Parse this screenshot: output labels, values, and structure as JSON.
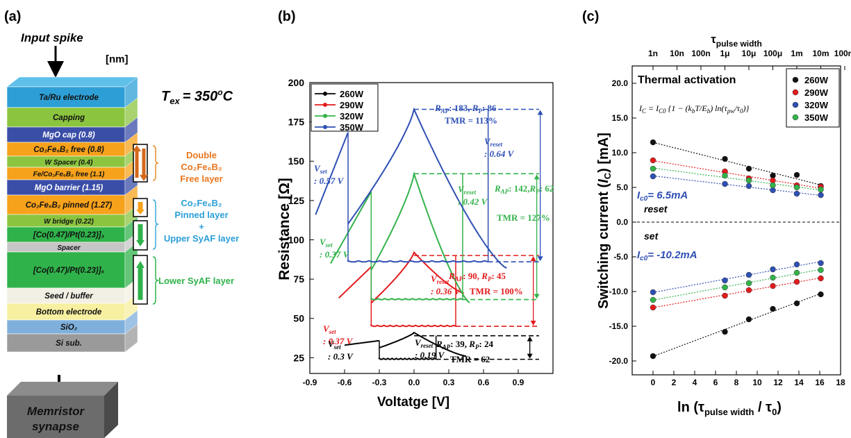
{
  "panel_labels": [
    "(a)",
    "(b)",
    "(c)"
  ],
  "panel_a": {
    "input_spike": "Input spike",
    "unit": "[nm]",
    "tex": "T",
    "tex_sub": "ex",
    "tex_eq": "= 350",
    "tex_sup": "o",
    "tex_c": "C",
    "layers": [
      {
        "label": "Ta/Ru electrode",
        "color": "#2d9fd6"
      },
      {
        "label": "Capping",
        "color": "#8bc53f"
      },
      {
        "label": "MgO cap (0.8)",
        "color": "#3a4ea8"
      },
      {
        "label": "Co₂Fe₆B₂ free (0.8)",
        "color": "#f7a21b"
      },
      {
        "label": "W Spacer (0.4)",
        "color": "#8bc53f"
      },
      {
        "label": "Fe/Co₂Fe₆B₂ free (1.1)",
        "color": "#f7a21b"
      },
      {
        "label": "MgO barrier (1.15)",
        "color": "#3a4ea8"
      },
      {
        "label": "Co₂Fe₆B₂ pinned (1.27)",
        "color": "#f7a21b"
      },
      {
        "label": "W bridge (0.22)",
        "color": "#8bc53f"
      },
      {
        "label": "[Co(0.47)/Pt(0.23)]₃",
        "color": "#2fb24a"
      },
      {
        "label": "Spacer",
        "color": "#c6c6c6"
      },
      {
        "label": "[Co(0.47)/Pt(0.23)]₆",
        "color": "#2fb24a"
      },
      {
        "label": "Seed / buffer",
        "color": "#f2efe4"
      },
      {
        "label": "Bottom electrode",
        "color": "#f7f0a0"
      },
      {
        "label": "SiO₂",
        "color": "#7fb0dc"
      },
      {
        "label": "Si sub.",
        "color": "#9a9a9a"
      }
    ],
    "annot_free": [
      "Double",
      "Co₂Fe₆B₂",
      "Free layer"
    ],
    "annot_pinned": [
      "Co₂Fe₆B₂",
      "Pinned layer",
      "+",
      "Upper SyAF layer"
    ],
    "annot_lower": "Lower SyAF layer",
    "memristor": [
      "Memristor",
      "synapse"
    ]
  },
  "chart_data": [
    {
      "type": "line",
      "panel": "(b)",
      "xlabel": "Voltatge [V]",
      "ylabel": "Resistance [Ω]",
      "xlim": [
        -0.9,
        1.2
      ],
      "ylim": [
        15,
        200
      ],
      "xticks": [
        "-0.9",
        "-0.6",
        "-0.3",
        "0.0",
        "0.3",
        "0.6",
        "0.9"
      ],
      "xtick_values": [
        -0.9,
        -0.6,
        -0.3,
        0.0,
        0.3,
        0.6,
        0.9
      ],
      "yticks": [
        "25",
        "50",
        "75",
        "100",
        "125",
        "150",
        "175",
        "200"
      ],
      "ytick_values": [
        25,
        50,
        75,
        100,
        125,
        150,
        175,
        200
      ],
      "legend_position": "top-left",
      "series": [
        {
          "name": "260W",
          "color": "#000000",
          "marker": "square",
          "loop": {
            "v_start": -0.6,
            "v_set": -0.3,
            "v_reset": 0.19,
            "v_end": 0.45,
            "r_low": 24,
            "r_high": 39,
            "r_start": 33,
            "r_end": 26,
            "r_peak": 41
          }
        },
        {
          "name": "290W",
          "color": "#e31a1c",
          "marker": "circle",
          "loop": {
            "v_start": -0.65,
            "v_set": -0.37,
            "v_reset": 0.36,
            "v_end": 0.43,
            "r_low": 45,
            "r_high": 90,
            "r_start": 63,
            "r_end": 66,
            "r_peak": 92
          }
        },
        {
          "name": "320W",
          "color": "#33b24a",
          "marker": "triangle",
          "loop": {
            "v_start": -0.72,
            "v_set": -0.37,
            "v_reset": 0.42,
            "v_end": 0.48,
            "r_low": 62,
            "r_high": 142,
            "r_start": 85,
            "r_end": 60,
            "r_peak": 142
          }
        },
        {
          "name": "350W",
          "color": "#2e4fb4",
          "marker": "triangle-down",
          "loop": {
            "v_start": -0.85,
            "v_set": -0.57,
            "v_reset": 0.64,
            "v_end": 0.8,
            "r_low": 86,
            "r_high": 183,
            "r_start": 116,
            "r_end": 82,
            "r_peak": 183
          }
        }
      ],
      "annotations": [
        {
          "series": "350W",
          "vset": ": 0.57 V",
          "vreset": ": 0.64 V",
          "rap": ": 183, ",
          "rp": ": 86",
          "tmr": "TMR = 113%"
        },
        {
          "series": "320W",
          "vset": ": 0.37 V",
          "vreset": ": 0.42 V",
          "rap": ": 142,",
          "rp": ": 62",
          "tmr": "TMR = 127%"
        },
        {
          "series": "290W",
          "vset": ": 0.37 V",
          "vreset": ": 0.36 V",
          "rap": ": 90, ",
          "rp": ": 45",
          "tmr": "TMR = 100%"
        },
        {
          "series": "260W",
          "vset": ": 0.3 V",
          "vreset": ": 0.19 V",
          "rap": ": 39, ",
          "rp": ": 24",
          "tmr": "TMR = 62"
        }
      ]
    },
    {
      "type": "scatter",
      "panel": "(c)",
      "xlabel": "ln (τpulse width / τ0)",
      "ylabel": "Switching current (IC) [mA]",
      "top_axis_title": "τpulse width",
      "top_ticks": [
        "1n",
        "10n",
        "100n",
        "1μ",
        "10μ",
        "100μ",
        "1m",
        "10m",
        "100m"
      ],
      "top_tick_x": [
        0,
        2.3,
        4.6,
        6.9,
        9.2,
        11.5,
        13.8,
        16.1,
        18.4
      ],
      "xlim": [
        -2,
        18
      ],
      "ylim": [
        -22,
        22.5
      ],
      "xticks": [
        "0",
        "2",
        "4",
        "6",
        "8",
        "10",
        "12",
        "14",
        "16",
        "18"
      ],
      "xtick_values": [
        0,
        2,
        4,
        6,
        8,
        10,
        12,
        14,
        16,
        18
      ],
      "yticks": [
        "20.0",
        "15.0",
        "10.0",
        "5.0",
        "0.0",
        "-5.0",
        "-10.0",
        "-15.0",
        "-20.0"
      ],
      "ytick_values": [
        20,
        15,
        10,
        5,
        0,
        -5,
        -10,
        -15,
        -20
      ],
      "legend_position": "top-right",
      "x": [
        0,
        6.9,
        9.2,
        11.5,
        13.8,
        16.1
      ],
      "series": [
        {
          "name": "260W",
          "color": "#111111",
          "reset": [
            11.5,
            9.1,
            7.7,
            6.7,
            6.8,
            5.2
          ],
          "set": [
            -19.3,
            -15.8,
            -14.0,
            -12.5,
            -11.7,
            -10.4
          ]
        },
        {
          "name": "290W",
          "color": "#e31a1c",
          "reset": [
            8.9,
            7.3,
            6.3,
            6.0,
            5.3,
            5.1
          ],
          "set": [
            -12.3,
            -10.6,
            -9.8,
            -9.2,
            -8.6,
            -8.1
          ]
        },
        {
          "name": "320W",
          "color": "#2e4fb4",
          "reset": [
            6.6,
            5.5,
            5.2,
            4.6,
            4.1,
            3.9
          ],
          "set": [
            -10.1,
            -8.4,
            -7.6,
            -6.8,
            -6.1,
            -5.9
          ]
        },
        {
          "name": "350W",
          "color": "#33b24a",
          "reset": [
            7.7,
            6.7,
            6.0,
            5.3,
            5.0,
            4.7
          ],
          "set": [
            -11.2,
            -9.4,
            -8.8,
            -8.0,
            -7.3,
            -6.9
          ]
        }
      ],
      "annotations": {
        "thermal_title": "Thermal activation",
        "equation": "IC = IC0 {1 − (kbT / Eb) ln(τpw / τ0)}",
        "reset_ic0": "= 6.5mA",
        "reset_label": "reset",
        "set_label": "set",
        "set_ic0": "= -10.2mA"
      }
    }
  ]
}
